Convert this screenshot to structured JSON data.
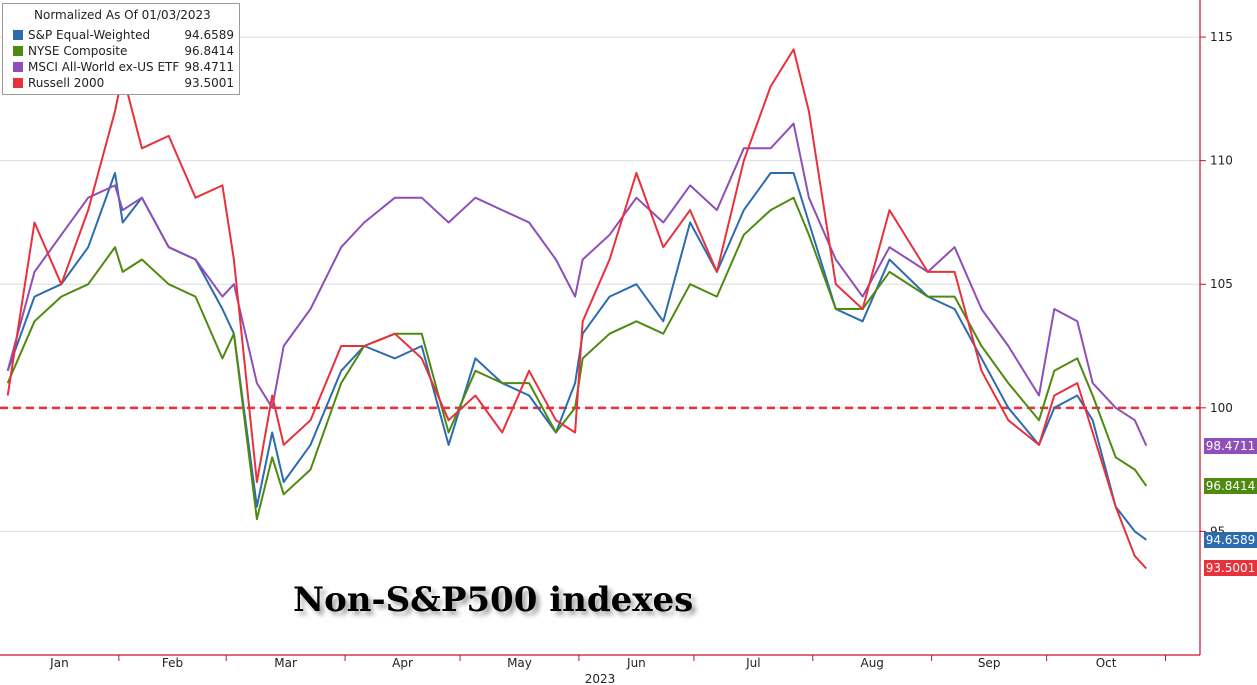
{
  "chart_data": {
    "type": "line",
    "legend_title": "Normalized As Of 01/03/2023",
    "legend_position": "top-left",
    "grid": true,
    "overlay_title": "Non-S&P500 indexes",
    "xlabel": "2023",
    "x_ticks": [
      "Jan",
      "Feb",
      "Mar",
      "Apr",
      "May",
      "Jun",
      "Jul",
      "Aug",
      "Sep",
      "Oct"
    ],
    "y_ticks": [
      "95",
      "100",
      "105",
      "110",
      "115"
    ],
    "ylim": [
      90,
      116.5
    ],
    "reference_line": {
      "y": 100,
      "color": "#e8313b",
      "style": "dashed"
    },
    "series": [
      {
        "name": "S&P Equal-Weighted",
        "color": "#2b6cb0",
        "last_value": "94.6589",
        "x": [
          "2023-01-03",
          "2023-01-10",
          "2023-01-17",
          "2023-01-24",
          "2023-01-31",
          "2023-02-02",
          "2023-02-07",
          "2023-02-14",
          "2023-02-21",
          "2023-02-28",
          "2023-03-03",
          "2023-03-09",
          "2023-03-13",
          "2023-03-16",
          "2023-03-23",
          "2023-03-31",
          "2023-04-06",
          "2023-04-14",
          "2023-04-21",
          "2023-04-28",
          "2023-05-05",
          "2023-05-12",
          "2023-05-19",
          "2023-05-26",
          "2023-05-31",
          "2023-06-02",
          "2023-06-09",
          "2023-06-16",
          "2023-06-23",
          "2023-06-30",
          "2023-07-07",
          "2023-07-14",
          "2023-07-21",
          "2023-07-27",
          "2023-07-31",
          "2023-08-07",
          "2023-08-14",
          "2023-08-21",
          "2023-08-31",
          "2023-09-07",
          "2023-09-14",
          "2023-09-21",
          "2023-09-29",
          "2023-10-03",
          "2023-10-09",
          "2023-10-13",
          "2023-10-19",
          "2023-10-24",
          "2023-10-27"
        ],
        "values": [
          101.5,
          104.5,
          105.0,
          106.5,
          109.5,
          107.5,
          108.5,
          106.5,
          106.0,
          104.0,
          103.0,
          96.0,
          99.0,
          97.0,
          98.5,
          101.5,
          102.5,
          102.0,
          102.5,
          98.5,
          102.0,
          101.0,
          100.5,
          99.0,
          101.0,
          103.0,
          104.5,
          105.0,
          103.5,
          107.5,
          105.5,
          108.0,
          109.5,
          109.5,
          107.5,
          104.0,
          103.5,
          106.0,
          104.5,
          104.0,
          102.0,
          100.0,
          98.5,
          100.0,
          100.5,
          99.5,
          96.0,
          95.0,
          94.6589
        ]
      },
      {
        "name": "NYSE Composite",
        "color": "#4f8a10",
        "last_value": "96.8414",
        "x": [
          "2023-01-03",
          "2023-01-10",
          "2023-01-17",
          "2023-01-24",
          "2023-01-31",
          "2023-02-02",
          "2023-02-07",
          "2023-02-14",
          "2023-02-21",
          "2023-02-28",
          "2023-03-03",
          "2023-03-09",
          "2023-03-13",
          "2023-03-16",
          "2023-03-23",
          "2023-03-31",
          "2023-04-06",
          "2023-04-14",
          "2023-04-21",
          "2023-04-28",
          "2023-05-05",
          "2023-05-12",
          "2023-05-19",
          "2023-05-26",
          "2023-05-31",
          "2023-06-02",
          "2023-06-09",
          "2023-06-16",
          "2023-06-23",
          "2023-06-30",
          "2023-07-07",
          "2023-07-14",
          "2023-07-21",
          "2023-07-27",
          "2023-07-31",
          "2023-08-07",
          "2023-08-14",
          "2023-08-21",
          "2023-08-31",
          "2023-09-07",
          "2023-09-14",
          "2023-09-21",
          "2023-09-29",
          "2023-10-03",
          "2023-10-09",
          "2023-10-13",
          "2023-10-19",
          "2023-10-24",
          "2023-10-27"
        ],
        "values": [
          101.0,
          103.5,
          104.5,
          105.0,
          106.5,
          105.5,
          106.0,
          105.0,
          104.5,
          102.0,
          103.0,
          95.5,
          98.0,
          96.5,
          97.5,
          101.0,
          102.5,
          103.0,
          103.0,
          99.0,
          101.5,
          101.0,
          101.0,
          99.0,
          100.0,
          102.0,
          103.0,
          103.5,
          103.0,
          105.0,
          104.5,
          107.0,
          108.0,
          108.5,
          107.0,
          104.0,
          104.0,
          105.5,
          104.5,
          104.5,
          102.5,
          101.0,
          99.5,
          101.5,
          102.0,
          100.5,
          98.0,
          97.5,
          96.8414
        ]
      },
      {
        "name": "MSCI All-World ex-US ETF",
        "color": "#8e4fb8",
        "last_value": "98.4711",
        "x": [
          "2023-01-03",
          "2023-01-10",
          "2023-01-17",
          "2023-01-24",
          "2023-01-31",
          "2023-02-02",
          "2023-02-07",
          "2023-02-14",
          "2023-02-21",
          "2023-02-28",
          "2023-03-03",
          "2023-03-09",
          "2023-03-13",
          "2023-03-16",
          "2023-03-23",
          "2023-03-31",
          "2023-04-06",
          "2023-04-14",
          "2023-04-21",
          "2023-04-28",
          "2023-05-05",
          "2023-05-12",
          "2023-05-19",
          "2023-05-26",
          "2023-05-31",
          "2023-06-02",
          "2023-06-09",
          "2023-06-16",
          "2023-06-23",
          "2023-06-30",
          "2023-07-07",
          "2023-07-14",
          "2023-07-21",
          "2023-07-27",
          "2023-07-31",
          "2023-08-07",
          "2023-08-14",
          "2023-08-21",
          "2023-08-31",
          "2023-09-07",
          "2023-09-14",
          "2023-09-21",
          "2023-09-29",
          "2023-10-03",
          "2023-10-09",
          "2023-10-13",
          "2023-10-19",
          "2023-10-24",
          "2023-10-27"
        ],
        "values": [
          101.5,
          105.5,
          107.0,
          108.5,
          109.0,
          108.0,
          108.5,
          106.5,
          106.0,
          104.5,
          105.0,
          101.0,
          100.0,
          102.5,
          104.0,
          106.5,
          107.5,
          108.5,
          108.5,
          107.5,
          108.5,
          108.0,
          107.5,
          106.0,
          104.5,
          106.0,
          107.0,
          108.5,
          107.5,
          109.0,
          108.0,
          110.5,
          110.5,
          111.5,
          108.5,
          106.0,
          104.5,
          106.5,
          105.5,
          106.5,
          104.0,
          102.5,
          100.5,
          104.0,
          103.5,
          101.0,
          100.0,
          99.5,
          98.4711
        ]
      },
      {
        "name": "Russell 2000",
        "color": "#e8313b",
        "last_value": "93.5001",
        "x": [
          "2023-01-03",
          "2023-01-10",
          "2023-01-17",
          "2023-01-24",
          "2023-01-31",
          "2023-02-02",
          "2023-02-07",
          "2023-02-14",
          "2023-02-21",
          "2023-02-28",
          "2023-03-03",
          "2023-03-09",
          "2023-03-13",
          "2023-03-16",
          "2023-03-23",
          "2023-03-31",
          "2023-04-06",
          "2023-04-14",
          "2023-04-21",
          "2023-04-28",
          "2023-05-05",
          "2023-05-12",
          "2023-05-19",
          "2023-05-26",
          "2023-05-31",
          "2023-06-02",
          "2023-06-09",
          "2023-06-16",
          "2023-06-23",
          "2023-06-30",
          "2023-07-07",
          "2023-07-14",
          "2023-07-21",
          "2023-07-27",
          "2023-07-31",
          "2023-08-07",
          "2023-08-14",
          "2023-08-21",
          "2023-08-31",
          "2023-09-07",
          "2023-09-14",
          "2023-09-21",
          "2023-09-29",
          "2023-10-03",
          "2023-10-09",
          "2023-10-13",
          "2023-10-19",
          "2023-10-24",
          "2023-10-27"
        ],
        "values": [
          100.5,
          107.5,
          105.0,
          108.0,
          112.0,
          113.5,
          110.5,
          111.0,
          108.5,
          109.0,
          106.0,
          97.0,
          100.5,
          98.5,
          99.5,
          102.5,
          102.5,
          103.0,
          102.0,
          99.5,
          100.5,
          99.0,
          101.5,
          99.5,
          99.0,
          103.5,
          106.0,
          109.5,
          106.5,
          108.0,
          105.5,
          110.0,
          113.0,
          114.5,
          112.0,
          105.0,
          104.0,
          108.0,
          105.5,
          105.5,
          101.5,
          99.5,
          98.5,
          100.5,
          101.0,
          99.0,
          96.0,
          94.0,
          93.5001
        ]
      }
    ]
  }
}
